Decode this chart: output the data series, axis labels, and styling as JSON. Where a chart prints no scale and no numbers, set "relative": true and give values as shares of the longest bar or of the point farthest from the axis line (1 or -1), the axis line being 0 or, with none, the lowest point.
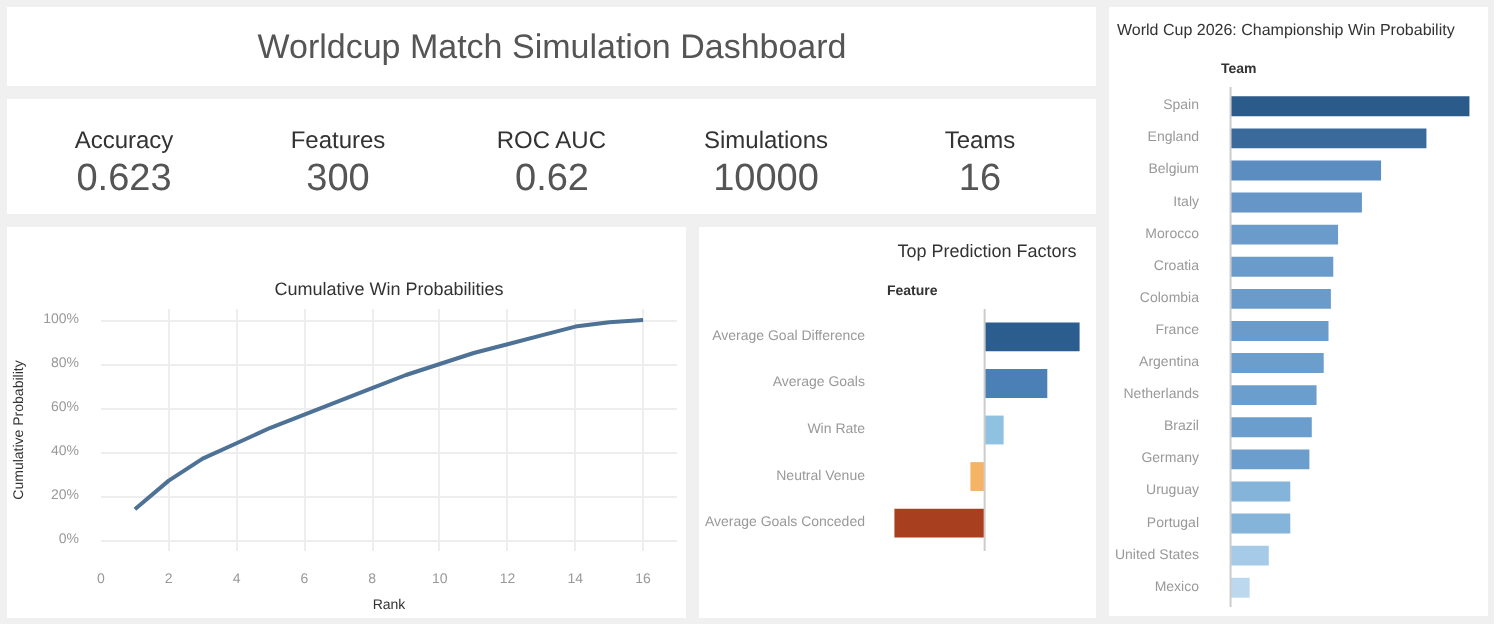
{
  "chart_data": [
    {
      "type": "other",
      "title": "Worldcup Match Simulation Dashboard"
    },
    {
      "type": "other",
      "categories": [
        "Accuracy",
        "Features",
        "ROC AUC",
        "Simulations",
        "Teams"
      ],
      "values": [
        0.623,
        300,
        0.62,
        10000,
        16
      ],
      "value_labels": [
        "0.623",
        "300",
        "0.62",
        "10000",
        "16"
      ]
    },
    {
      "type": "line",
      "title": "Cumulative Win Probabilities",
      "xlabel": "Rank",
      "ylabel": "Cumulative Probability",
      "x": [
        1,
        2,
        3,
        4,
        5,
        6,
        7,
        8,
        9,
        10,
        11,
        12,
        13,
        14,
        15,
        16
      ],
      "series": [
        {
          "color": "#4e7196",
          "values": [
            14,
            27,
            37,
            44,
            51,
            57,
            63,
            69,
            75,
            80,
            85,
            89,
            93,
            97,
            99,
            100
          ]
        }
      ],
      "xlim": [
        0,
        17
      ],
      "xticks": [
        0,
        2,
        4,
        6,
        8,
        10,
        12,
        14,
        16
      ],
      "ylim": [
        -5,
        105
      ],
      "yticks": [
        {
          "value": 0,
          "label": "0%"
        },
        {
          "value": 20,
          "label": "20%"
        },
        {
          "value": 40,
          "label": "40%"
        },
        {
          "value": 60,
          "label": "60%"
        },
        {
          "value": 80,
          "label": "80%"
        },
        {
          "value": 100,
          "label": "100%"
        }
      ],
      "grid": true,
      "marker": "none",
      "line_style": "solid"
    },
    {
      "type": "bar",
      "orientation": "horizontal",
      "relative": true,
      "title": "Top Prediction Factors",
      "ylabel": "Feature",
      "categories": [
        "Average Goal Difference",
        "Average Goals",
        "Win Rate",
        "Neutral Venue",
        "Average Goals Conceded"
      ],
      "values": [
        1,
        0.66,
        0.2,
        -0.15,
        -0.95
      ],
      "colors": [
        "#2c5d8f",
        "#4a80b5",
        "#8fc1e0",
        "#f4b463",
        "#a8401f"
      ]
    },
    {
      "type": "bar",
      "orientation": "horizontal",
      "relative": true,
      "title": "World Cup 2026: Championship Win Probability",
      "ylabel": "Team",
      "categories": [
        "Spain",
        "England",
        "Belgium",
        "Italy",
        "Morocco",
        "Croatia",
        "Colombia",
        "France",
        "Argentina",
        "Netherlands",
        "Brazil",
        "Germany",
        "Uruguay",
        "Portugal",
        "United States",
        "Mexico"
      ],
      "values": [
        1,
        0.82,
        0.63,
        0.55,
        0.45,
        0.43,
        0.42,
        0.41,
        0.39,
        0.36,
        0.34,
        0.33,
        0.25,
        0.25,
        0.16,
        0.08
      ],
      "colors": [
        "#2b5b8a",
        "#3a6a9c",
        "#5b8dc0",
        "#6596c7",
        "#6a9bcb",
        "#6a9bcb",
        "#6a9bcb",
        "#6a9bcb",
        "#6c9ecd",
        "#6c9ecd",
        "#6c9ecd",
        "#6c9ecd",
        "#85b4db",
        "#85b4db",
        "#a6cbe8",
        "#bcd8ee"
      ]
    }
  ]
}
